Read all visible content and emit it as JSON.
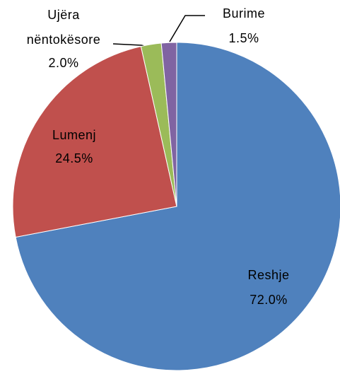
{
  "chart_data": {
    "type": "pie",
    "categories": [
      "Reshje",
      "Lumenj",
      "Ujëra nëntokësore",
      "Burime"
    ],
    "values": [
      72.0,
      24.5,
      2.0,
      1.5
    ],
    "value_labels": [
      "72.0%",
      "24.5%",
      "2.0%",
      "1.5%"
    ],
    "colors": [
      "#4f81bd",
      "#c0504d",
      "#9bbb59",
      "#8064a2"
    ]
  }
}
